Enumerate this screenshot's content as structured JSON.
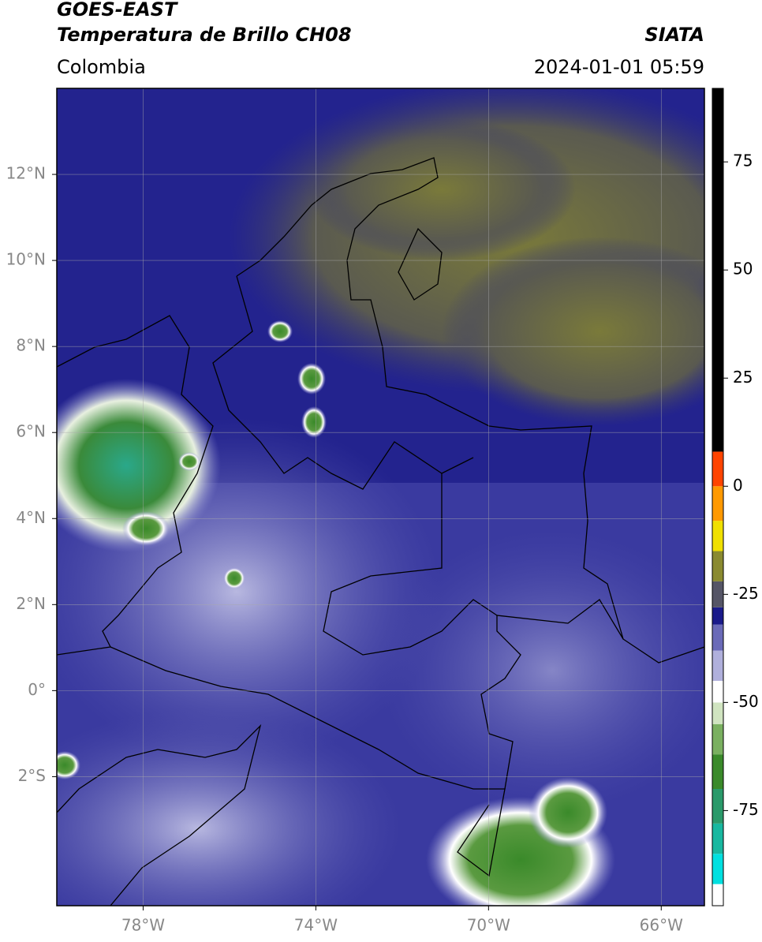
{
  "header": {
    "satellite": "GOES-EAST",
    "product": "Temperatura de Brillo CH08",
    "agency": "SIATA",
    "region": "Colombia",
    "datetime": "2024-01-01 05:59"
  },
  "map": {
    "xlim": [
      -80,
      -65
    ],
    "ylim": [
      -5,
      14
    ],
    "xticks": [
      {
        "value": -78,
        "label": "78°W"
      },
      {
        "value": -74,
        "label": "74°W"
      },
      {
        "value": -70,
        "label": "70°W"
      },
      {
        "value": -66,
        "label": "66°W"
      }
    ],
    "yticks": [
      {
        "value": 12,
        "label": "12°N"
      },
      {
        "value": 10,
        "label": "10°N"
      },
      {
        "value": 8,
        "label": "8°N"
      },
      {
        "value": 6,
        "label": "6°N"
      },
      {
        "value": 4,
        "label": "4°N"
      },
      {
        "value": 2,
        "label": "2°N"
      },
      {
        "value": 0,
        "label": "0°"
      },
      {
        "value": -2,
        "label": "2°S"
      }
    ]
  },
  "colorbar": {
    "clim": [
      -97,
      92
    ],
    "ticks": [
      75,
      50,
      25,
      0,
      -25,
      -50,
      -75
    ],
    "bands": [
      {
        "from": -97,
        "color": "#ffffff"
      },
      {
        "from": -92,
        "color": "#00e0e0"
      },
      {
        "from": -85,
        "color": "#18b8a0"
      },
      {
        "from": -78,
        "color": "#2a9a6a"
      },
      {
        "from": -70,
        "color": "#3a8a2a"
      },
      {
        "from": -62,
        "color": "#7ab060"
      },
      {
        "from": -55,
        "color": "#d0e4c0"
      },
      {
        "from": -50,
        "color": "#ffffff"
      },
      {
        "from": -45,
        "color": "#b0b0dc"
      },
      {
        "from": -38,
        "color": "#6a6ab8"
      },
      {
        "from": -32,
        "color": "#1a1a8a"
      },
      {
        "from": -28,
        "color": "#555566"
      },
      {
        "from": -22,
        "color": "#8a8a30"
      },
      {
        "from": -15,
        "color": "#f0e000"
      },
      {
        "from": -8,
        "color": "#ff9900"
      },
      {
        "from": 0,
        "color": "#ff4400"
      },
      {
        "from": 8,
        "color": "#000000"
      }
    ]
  }
}
